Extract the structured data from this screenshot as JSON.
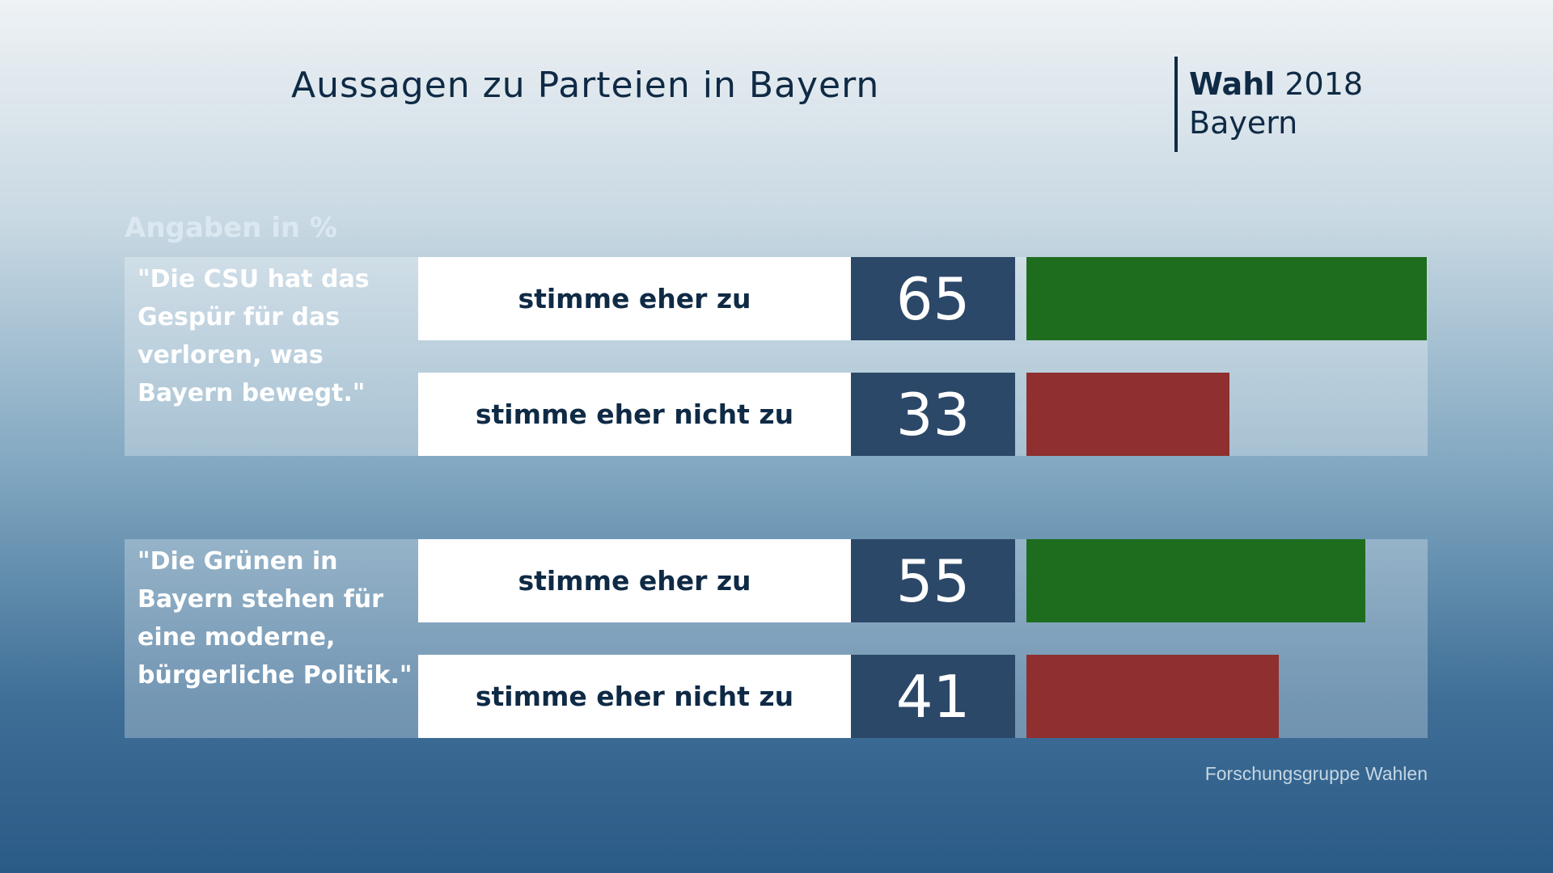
{
  "chart_data": {
    "type": "bar",
    "title": "Aussagen zu Parteien in Bayern",
    "brand": {
      "name": "Wahl",
      "year": "2018",
      "region": "Bayern"
    },
    "subtitle": "Angaben in %",
    "categories": [
      "\"Die CSU hat das Gespür für das verloren, was Bayern bewegt.\"",
      "\"Die Grünen in Bayern stehen für eine moderne, bürgerliche Politik.\""
    ],
    "series": [
      {
        "name": "stimme eher zu",
        "color": "#1e6d1e",
        "values": [
          65,
          55
        ]
      },
      {
        "name": "stimme eher nicht zu",
        "color": "#8f2f2f",
        "values": [
          33,
          41
        ]
      }
    ],
    "source": "Forschungsgruppe Wahlen"
  }
}
